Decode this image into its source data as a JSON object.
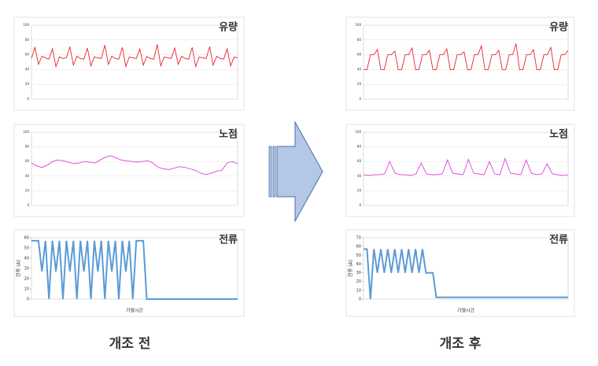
{
  "captions": [
    "개조 전",
    "개조 후"
  ],
  "chart_data": [
    {
      "type": "line",
      "title": "유량",
      "color": "#e8242b",
      "ylim": [
        0,
        100
      ],
      "yticks": [
        0,
        20,
        40,
        60,
        80,
        100
      ],
      "grid": true,
      "values": [
        55,
        70,
        47,
        58,
        56,
        54,
        68,
        44,
        57,
        55,
        56,
        71,
        46,
        58,
        55,
        54,
        69,
        45,
        57,
        56,
        55,
        73,
        47,
        58,
        55,
        54,
        70,
        44,
        57,
        56,
        55,
        68,
        46,
        58,
        55,
        54,
        74,
        45,
        57,
        56,
        55,
        69,
        47,
        58,
        55,
        54,
        70,
        44,
        57,
        56,
        55,
        71,
        46,
        58,
        55,
        54,
        68,
        45,
        57,
        56
      ]
    },
    {
      "type": "line",
      "title": "노점",
      "color": "#e040e0",
      "ylim": [
        0,
        100
      ],
      "yticks": [
        0,
        20,
        40,
        60,
        80,
        100
      ],
      "grid": true,
      "values": [
        58,
        54,
        52,
        55,
        60,
        62,
        61,
        59,
        57,
        58,
        60,
        59,
        58,
        62,
        66,
        68,
        65,
        62,
        61,
        60,
        59,
        60,
        61,
        58,
        52,
        50,
        49,
        51,
        53,
        52,
        50,
        48,
        44,
        42,
        44,
        47,
        48,
        58,
        60,
        57
      ]
    },
    {
      "type": "line",
      "title": "전류",
      "x_label": "가열시간",
      "y_label": "전류 (A)",
      "color": "#5b9bd5",
      "ylim": [
        0,
        60
      ],
      "yticks": [
        0,
        10,
        20,
        30,
        40,
        50,
        60
      ],
      "grid": false,
      "values": [
        57,
        57,
        57,
        27,
        57,
        0,
        57,
        27,
        57,
        0,
        57,
        27,
        57,
        0,
        57,
        27,
        57,
        0,
        57,
        27,
        57,
        0,
        57,
        27,
        57,
        0,
        57,
        27,
        57,
        0,
        57,
        57,
        57,
        0,
        0,
        0,
        0,
        0,
        0,
        0,
        0,
        0,
        0,
        0,
        0,
        0,
        0,
        0,
        0,
        0,
        0,
        0,
        0,
        0,
        0,
        0,
        0,
        0,
        0,
        0
      ]
    },
    {
      "type": "line",
      "title": "유량",
      "color": "#e8242b",
      "ylim": [
        0,
        100
      ],
      "yticks": [
        0,
        20,
        40,
        60,
        80,
        100
      ],
      "grid": true,
      "values": [
        40,
        40,
        60,
        60,
        67,
        40,
        40,
        60,
        60,
        65,
        40,
        40,
        60,
        60,
        69,
        40,
        40,
        60,
        60,
        66,
        40,
        40,
        60,
        60,
        68,
        40,
        40,
        60,
        60,
        64,
        40,
        40,
        60,
        60,
        72,
        40,
        40,
        60,
        60,
        66,
        40,
        40,
        60,
        60,
        75,
        40,
        40,
        60,
        60,
        67,
        40,
        40,
        60,
        60,
        70,
        40,
        40,
        60,
        60,
        66
      ]
    },
    {
      "type": "line",
      "title": "노점",
      "color": "#e040e0",
      "ylim": [
        0,
        100
      ],
      "yticks": [
        0,
        20,
        40,
        60,
        80,
        100
      ],
      "grid": true,
      "values": [
        42,
        41,
        42,
        42,
        43,
        60,
        44,
        42,
        42,
        41,
        43,
        58,
        43,
        42,
        42,
        43,
        62,
        44,
        43,
        42,
        63,
        44,
        43,
        42,
        60,
        43,
        42,
        64,
        44,
        43,
        42,
        62,
        44,
        42,
        43,
        57,
        43,
        42,
        41,
        42
      ]
    },
    {
      "type": "line",
      "title": "전류",
      "x_label": "가열시간",
      "y_label": "전류 (A)",
      "color": "#5b9bd5",
      "ylim": [
        0,
        70
      ],
      "yticks": [
        0,
        10,
        20,
        30,
        40,
        50,
        60,
        70
      ],
      "grid": false,
      "values": [
        57,
        57,
        0,
        57,
        30,
        57,
        30,
        57,
        30,
        57,
        30,
        57,
        30,
        57,
        30,
        57,
        30,
        57,
        30,
        30,
        30,
        2,
        2,
        2,
        2,
        2,
        2,
        2,
        2,
        2,
        2,
        2,
        2,
        2,
        2,
        2,
        2,
        2,
        2,
        2,
        2,
        2,
        2,
        2,
        2,
        2,
        2,
        2,
        2,
        2,
        2,
        2,
        2,
        2,
        2,
        2,
        2,
        2,
        2,
        2
      ]
    }
  ]
}
